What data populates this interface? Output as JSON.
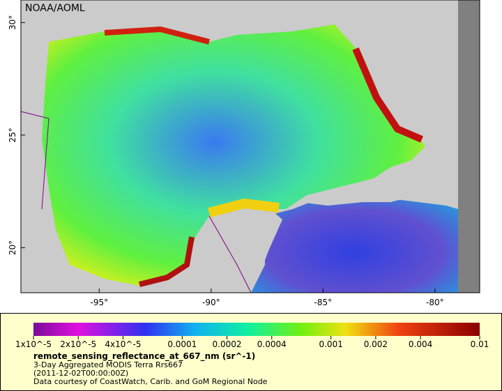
{
  "map": {
    "credit": "NOAA/AOML",
    "lon_lim": [
      -98.5,
      -78
    ],
    "lat_lim": [
      18,
      31
    ],
    "lon_ticks": [
      {
        "value": -95,
        "label": "-95°"
      },
      {
        "value": -90,
        "label": "-90°"
      },
      {
        "value": -85,
        "label": "-85°"
      },
      {
        "value": -80,
        "label": "-80°"
      }
    ],
    "lat_ticks": [
      {
        "value": 20,
        "label": "20°"
      },
      {
        "value": 25,
        "label": "25°"
      },
      {
        "value": 30,
        "label": "30°"
      }
    ]
  },
  "colorbar": {
    "lim": [
      1e-05,
      0.01
    ],
    "scale": "log",
    "ticks": [
      {
        "value": 1e-05,
        "label": "1x10^-5"
      },
      {
        "value": 2e-05,
        "label": "2x10^-5"
      },
      {
        "value": 4e-05,
        "label": "4x10^-5"
      },
      0.0001,
      0.0002,
      0.0004,
      0.001,
      0.002,
      0.004,
      0.01
    ],
    "variable": "remote_sensing_reflectance_at_667_nm (sr^-1)",
    "description": "3-Day Aggregated MODIS Terra Rrs667",
    "time": "(2011-12-02T00:00:00Z)",
    "credit": "Data courtesy of CoastWatch, Carib. and GoM Regional Node"
  }
}
